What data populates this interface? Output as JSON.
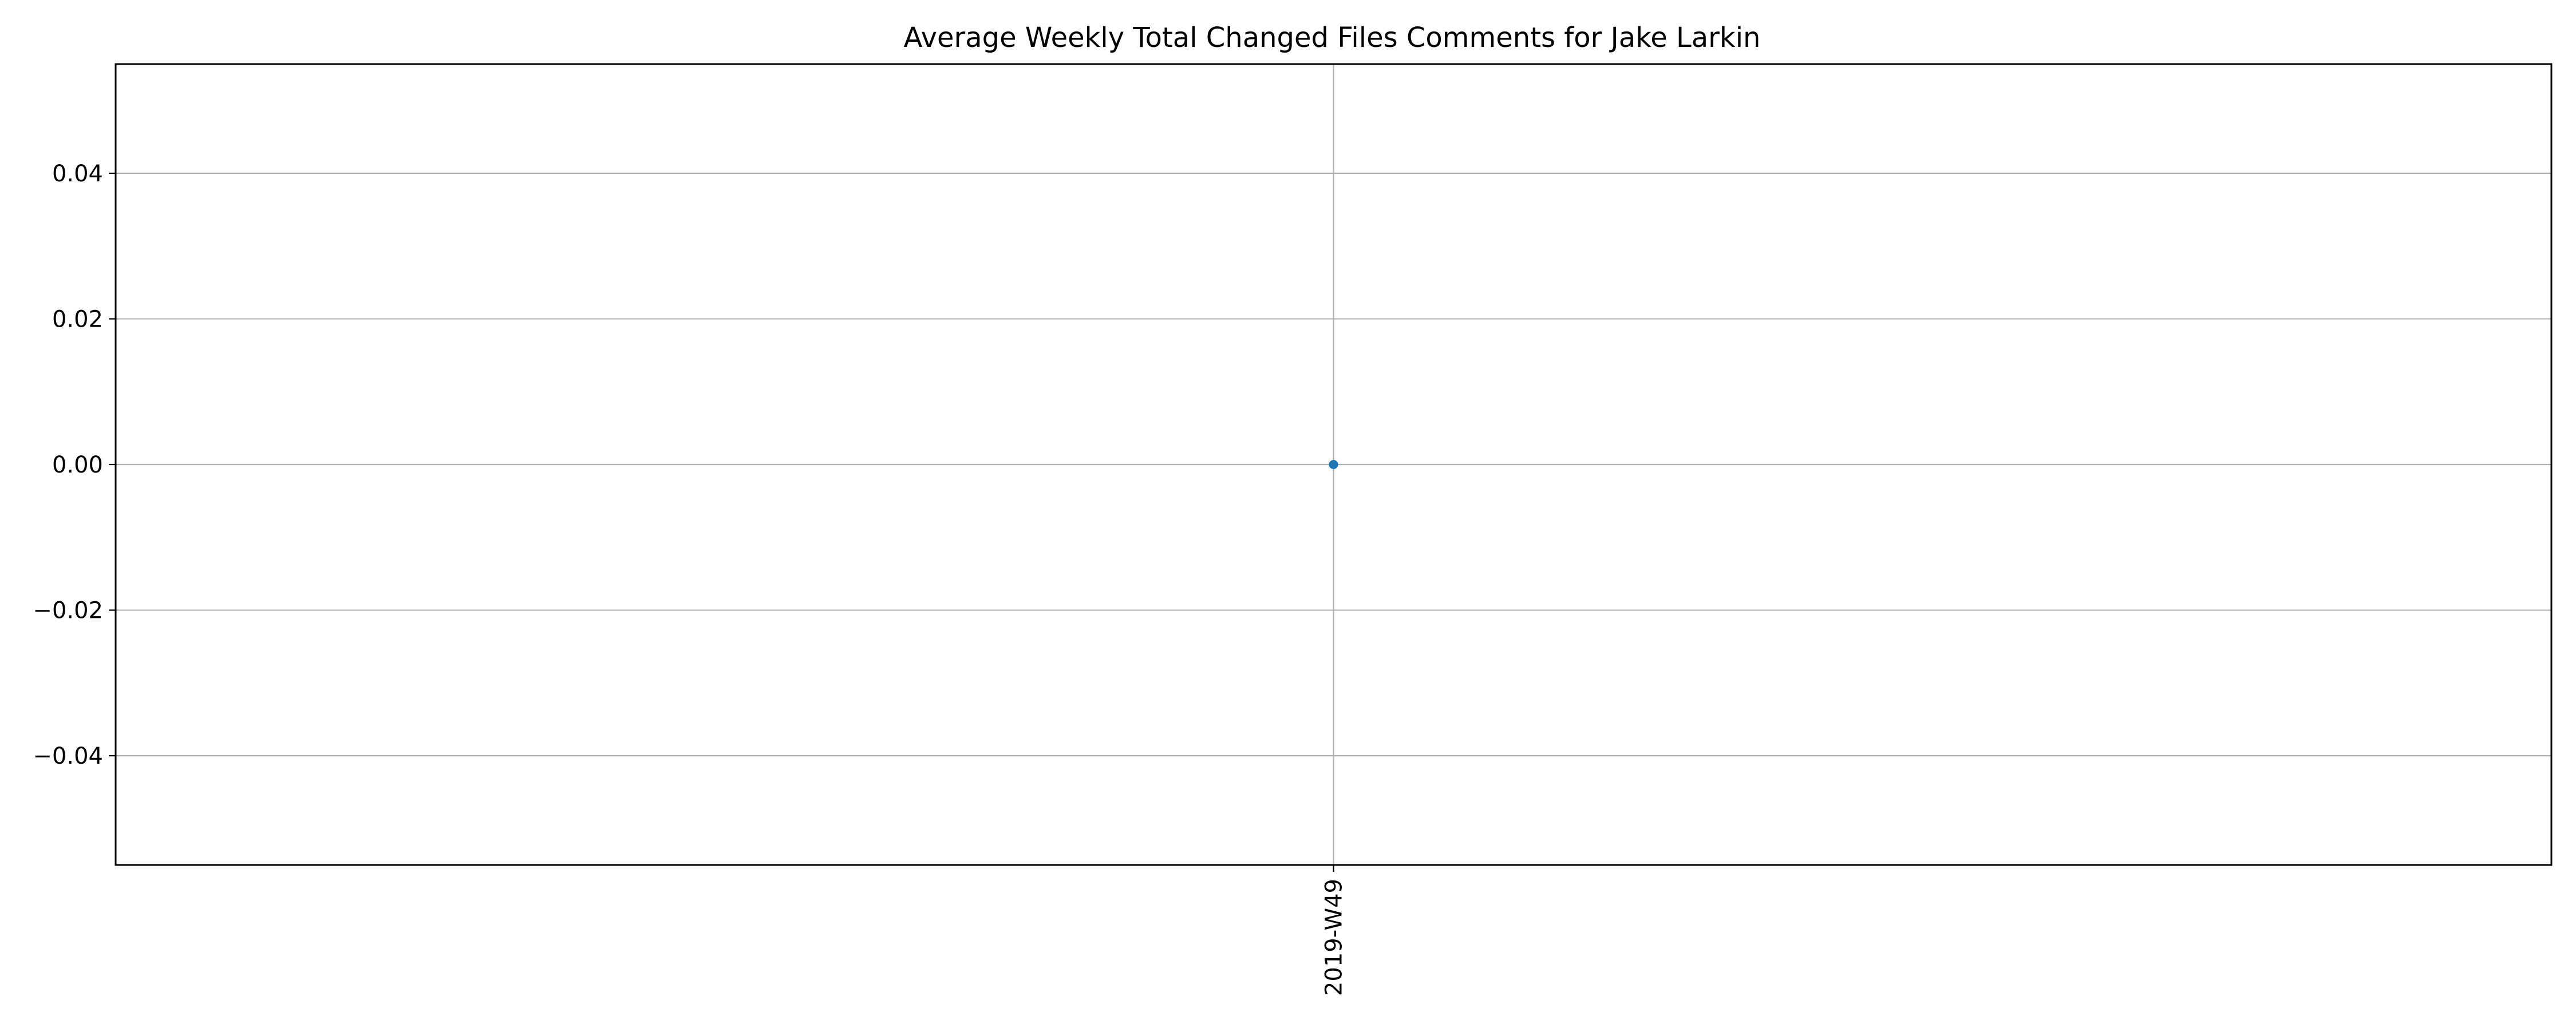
{
  "chart_data": {
    "type": "line",
    "title": "Average Weekly Total Changed Files Comments for Jake Larkin",
    "xlabel": "",
    "ylabel": "",
    "categories": [
      "2019-W49"
    ],
    "series": [
      {
        "values": [
          0.0
        ]
      }
    ],
    "ylim": [
      -0.055,
      0.055
    ],
    "yticks": [
      -0.04,
      -0.02,
      0.0,
      0.02,
      0.04
    ],
    "ytick_labels": [
      "−0.04",
      "−0.02",
      "0.00",
      "0.02",
      "0.04"
    ],
    "grid": true,
    "legend": "none",
    "colors": {
      "series": "#1f77b4",
      "grid": "#b0b0b0",
      "axis": "#000000"
    },
    "marker": "dot"
  }
}
